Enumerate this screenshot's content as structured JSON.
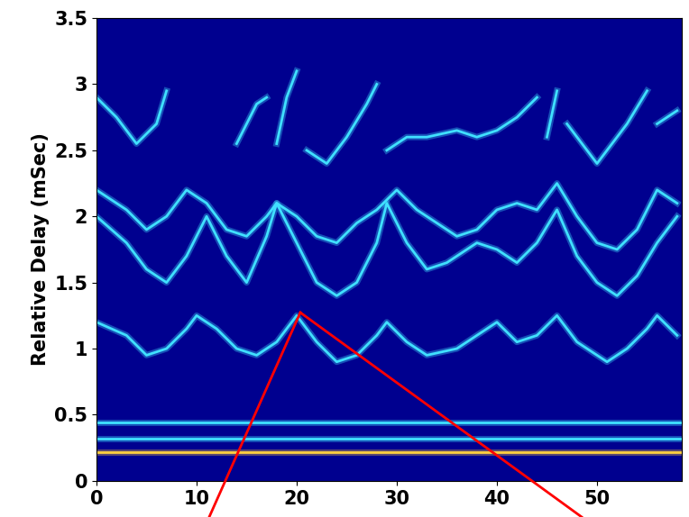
{
  "chart_data": {
    "type": "line",
    "ylabel": "Relative Delay (mSec)",
    "xlim": [
      0,
      58.5
    ],
    "xticks": [
      0,
      10,
      20,
      30,
      40,
      50
    ],
    "ylim": [
      0,
      3.5
    ],
    "yticks": [
      0,
      0.5,
      1,
      1.5,
      2,
      2.5,
      3,
      3.5
    ],
    "grid": false,
    "series": [
      {
        "color": "#ffd040",
        "x": [
          0,
          58.5
        ],
        "values": [
          0.22,
          0.22
        ]
      },
      {
        "color": "#40e0ff",
        "x": [
          0,
          58.5
        ],
        "values": [
          0.32,
          0.32
        ]
      },
      {
        "color": "#40e0ff",
        "x": [
          0,
          58.5
        ],
        "values": [
          0.44,
          0.44
        ]
      },
      {
        "color": "#40e0ff",
        "x": [
          0,
          3,
          5,
          7,
          9,
          10,
          12,
          14,
          16,
          18,
          20,
          22,
          24,
          26,
          28,
          29,
          31,
          33,
          36,
          38,
          40,
          42,
          44,
          46,
          48,
          50,
          51,
          53,
          55,
          56,
          58
        ],
        "values": [
          1.2,
          1.1,
          0.95,
          1.0,
          1.15,
          1.25,
          1.15,
          1.0,
          0.95,
          1.05,
          1.25,
          1.05,
          0.9,
          0.95,
          1.1,
          1.2,
          1.05,
          0.95,
          1.0,
          1.1,
          1.2,
          1.05,
          1.1,
          1.25,
          1.05,
          0.95,
          0.9,
          1.0,
          1.15,
          1.25,
          1.1
        ]
      },
      {
        "color": "#40e0ff",
        "x": [
          0,
          3,
          5,
          7,
          9,
          11,
          13,
          15,
          17,
          18,
          20,
          22,
          24,
          26,
          28,
          29,
          31,
          33,
          35,
          38,
          40,
          42,
          44,
          46,
          48,
          50,
          52,
          54,
          56,
          58
        ],
        "values": [
          2.0,
          1.8,
          1.6,
          1.5,
          1.7,
          2.0,
          1.7,
          1.5,
          1.85,
          2.1,
          1.8,
          1.5,
          1.4,
          1.5,
          1.8,
          2.1,
          1.8,
          1.6,
          1.65,
          1.8,
          1.75,
          1.65,
          1.8,
          2.05,
          1.7,
          1.5,
          1.4,
          1.55,
          1.8,
          2.0
        ]
      },
      {
        "color": "#40e0ff",
        "x": [
          0,
          3,
          5,
          7,
          9,
          11,
          13,
          15,
          17,
          18,
          20,
          22,
          24,
          26,
          28,
          30,
          32,
          34,
          36,
          38,
          40,
          42,
          44,
          46,
          48,
          50,
          52,
          54,
          56,
          58
        ],
        "values": [
          2.2,
          2.05,
          1.9,
          2.0,
          2.2,
          2.1,
          1.9,
          1.85,
          2.0,
          2.1,
          2.0,
          1.85,
          1.8,
          1.95,
          2.05,
          2.2,
          2.05,
          1.95,
          1.85,
          1.9,
          2.05,
          2.1,
          2.05,
          2.25,
          2.0,
          1.8,
          1.75,
          1.9,
          2.2,
          2.1
        ]
      },
      {
        "color": "#40e0ff",
        "x": [
          0,
          2,
          4,
          6,
          7,
          10,
          14,
          16,
          17,
          17.5,
          18,
          19,
          20,
          20.5,
          21,
          23,
          25,
          27,
          28,
          28.5,
          29,
          31,
          33,
          36,
          38,
          40,
          42,
          44,
          44.5,
          45,
          46,
          46.5,
          47,
          50,
          53,
          55,
          55.5,
          56,
          58
        ],
        "values": [
          2.9,
          2.75,
          2.55,
          2.7,
          2.95,
          null,
          2.55,
          2.85,
          2.9,
          null,
          2.55,
          2.9,
          3.1,
          null,
          2.5,
          2.4,
          2.6,
          2.85,
          3.0,
          null,
          2.5,
          2.6,
          2.6,
          2.65,
          2.6,
          2.65,
          2.75,
          2.9,
          null,
          2.6,
          2.95,
          null,
          2.7,
          2.4,
          2.7,
          2.95,
          null,
          2.7,
          2.8
        ]
      }
    ]
  }
}
